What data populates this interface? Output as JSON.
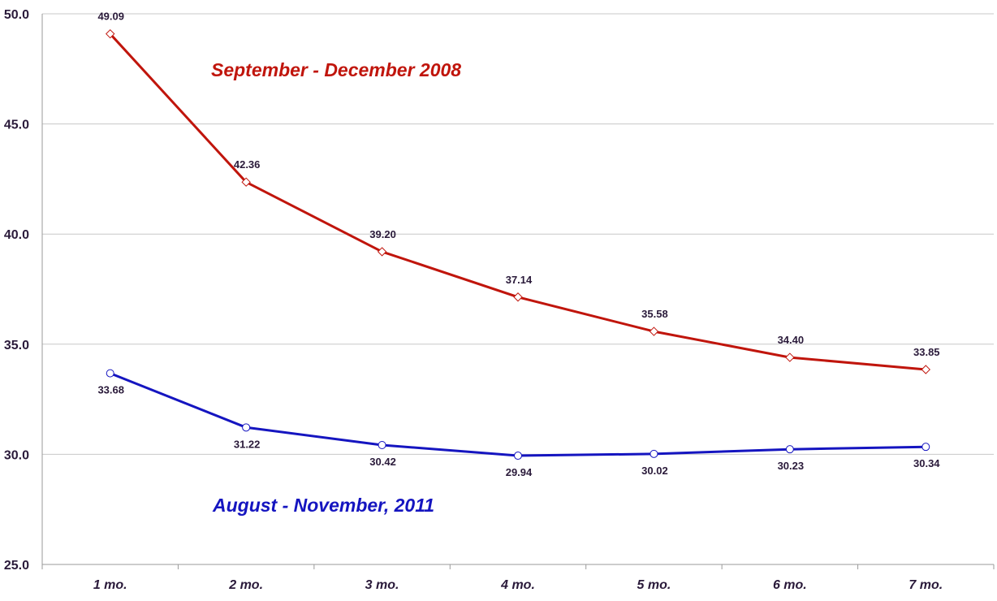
{
  "chart_data": {
    "type": "line",
    "categories": [
      "1 mo.",
      "2 mo.",
      "3 mo.",
      "4 mo.",
      "5 mo.",
      "6 mo.",
      "7 mo."
    ],
    "ylim": [
      25.0,
      50.0
    ],
    "yticks": [
      25.0,
      30.0,
      35.0,
      40.0,
      45.0,
      50.0
    ],
    "ytick_labels": [
      "25.0",
      "30.0",
      "35.0",
      "40.0",
      "45.0",
      "50.0"
    ],
    "grid": true,
    "legend": "none",
    "series": [
      {
        "name": "September - December 2008",
        "color": "#c0150c",
        "marker": "diamond",
        "values": [
          49.09,
          42.36,
          39.2,
          37.14,
          35.58,
          34.4,
          33.85
        ],
        "labels": [
          "49.09",
          "42.36",
          "39.20",
          "37.14",
          "35.58",
          "34.40",
          "33.85"
        ]
      },
      {
        "name": "August - November, 2011",
        "color": "#1515c0",
        "marker": "circle",
        "values": [
          33.68,
          31.22,
          30.42,
          29.94,
          30.02,
          30.23,
          30.34
        ],
        "labels": [
          "33.68",
          "31.22",
          "30.42",
          "29.94",
          "30.02",
          "30.23",
          "30.34"
        ]
      }
    ]
  }
}
